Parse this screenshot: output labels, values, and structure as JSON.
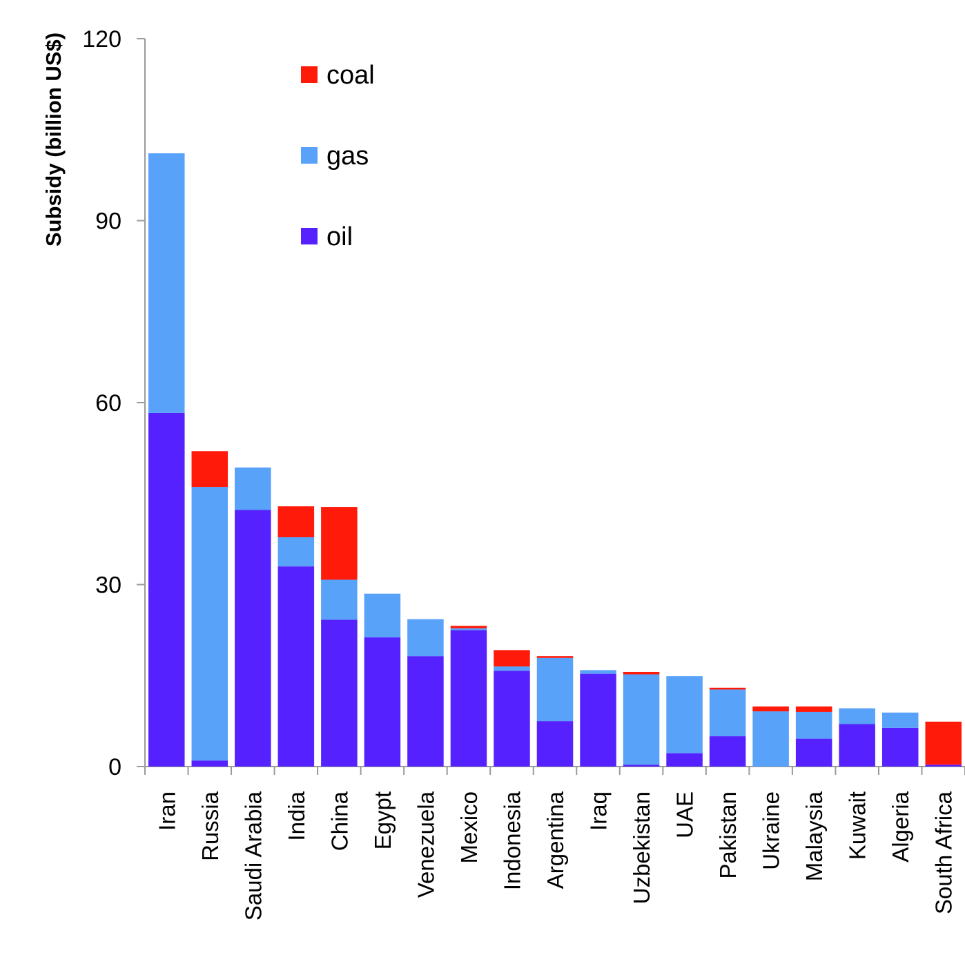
{
  "chart_data": {
    "type": "bar",
    "stacked": true,
    "title": "",
    "xlabel": "",
    "ylabel": "Subsidy (billion US$)",
    "ylim": [
      0,
      120
    ],
    "yticks": [
      "0",
      "30",
      "60",
      "90",
      "120"
    ],
    "grid": false,
    "legend": {
      "placement": "top-center",
      "entries": [
        "coal",
        "gas",
        "oil"
      ]
    },
    "colors": {
      "oil": "#5522ff",
      "gas": "#58a2fa",
      "coal": "#ff1a0a"
    },
    "categories": [
      "Iran",
      "Russia",
      "Saudi Arabia",
      "India",
      "China",
      "Egypt",
      "Venezuela",
      "Mexico",
      "Indonesia",
      "Argentina",
      "Iraq",
      "Uzbekistan",
      "UAE",
      "Pakistan",
      "Ukraine",
      "Malaysia",
      "Kuwait",
      "Algeria",
      "South Africa"
    ],
    "series": [
      {
        "name": "oil",
        "values": [
          58.3,
          1.0,
          42.3,
          33.0,
          24.2,
          21.3,
          18.2,
          22.5,
          15.8,
          7.5,
          15.3,
          0.3,
          2.2,
          5.0,
          0.0,
          4.6,
          7.0,
          6.4,
          0.3
        ]
      },
      {
        "name": "gas",
        "values": [
          42.8,
          45.1,
          7.0,
          4.8,
          6.6,
          7.2,
          6.1,
          0.3,
          0.7,
          10.4,
          0.6,
          14.9,
          12.7,
          7.7,
          9.1,
          4.4,
          2.6,
          2.5,
          0.0
        ]
      },
      {
        "name": "coal",
        "values": [
          0.0,
          5.9,
          0.0,
          5.1,
          12.0,
          0.0,
          0.0,
          0.4,
          2.7,
          0.3,
          0.0,
          0.4,
          0.0,
          0.3,
          0.8,
          0.9,
          0.0,
          0.0,
          7.1
        ]
      }
    ]
  }
}
